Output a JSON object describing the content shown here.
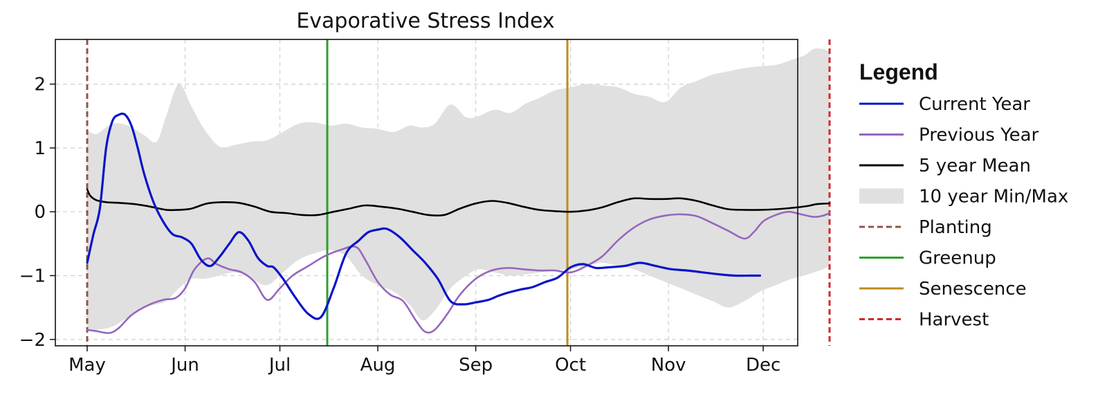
{
  "chart_data": {
    "type": "line",
    "title": "Evaporative Stress Index",
    "xlabel": "",
    "ylabel": "",
    "x_domain": [
      "2023-05-01",
      "2023-12-22"
    ],
    "xlim": [
      0,
      235
    ],
    "ylim": [
      -2.1,
      2.7
    ],
    "x_ticks": [
      {
        "label": "May",
        "x": 0
      },
      {
        "label": "Jun",
        "x": 31
      },
      {
        "label": "Jul",
        "x": 61
      },
      {
        "label": "Aug",
        "x": 92
      },
      {
        "label": "Sep",
        "x": 123
      },
      {
        "label": "Oct",
        "x": 153
      },
      {
        "label": "Nov",
        "x": 184
      },
      {
        "label": "Dec",
        "x": 214
      }
    ],
    "y_ticks": [
      {
        "label": "2",
        "y": 2
      },
      {
        "label": "1",
        "y": 1
      },
      {
        "label": "0",
        "y": 0
      },
      {
        "label": "−1",
        "y": -1
      },
      {
        "label": "−2",
        "y": -2
      }
    ],
    "grid": true,
    "legend_position": "right",
    "legend_title": "Legend",
    "band": {
      "name": "10 year Min/Max",
      "color": "#e0e0e0",
      "x": [
        0,
        3,
        8,
        13,
        18,
        22,
        25,
        29,
        33,
        37,
        42,
        47,
        52,
        57,
        62,
        67,
        72,
        77,
        82,
        87,
        92,
        97,
        102,
        106,
        110,
        115,
        120,
        124,
        129,
        134,
        139,
        143,
        148,
        153,
        158,
        163,
        168,
        173,
        178,
        183,
        188,
        193,
        198,
        203,
        208,
        213,
        218,
        223,
        227,
        230,
        233,
        235
      ],
      "upper": [
        1.28,
        1.22,
        1.38,
        1.35,
        1.2,
        1.1,
        1.5,
        2.0,
        1.65,
        1.3,
        1.02,
        1.05,
        1.1,
        1.12,
        1.25,
        1.38,
        1.4,
        1.35,
        1.38,
        1.32,
        1.3,
        1.25,
        1.35,
        1.32,
        1.38,
        1.68,
        1.48,
        1.5,
        1.6,
        1.55,
        1.7,
        1.78,
        1.9,
        1.95,
        2.0,
        1.98,
        1.95,
        1.85,
        1.8,
        1.72,
        1.95,
        2.05,
        2.15,
        2.2,
        2.25,
        2.28,
        2.3,
        2.38,
        2.45,
        2.55,
        2.55,
        2.5
      ],
      "lower": [
        -1.85,
        -1.85,
        -1.8,
        -1.65,
        -1.5,
        -1.45,
        -1.4,
        -1.2,
        -1.05,
        -1.05,
        -1.0,
        -0.95,
        -1.05,
        -1.15,
        -0.95,
        -0.75,
        -0.65,
        -0.6,
        -0.7,
        -1.0,
        -1.15,
        -1.25,
        -1.45,
        -1.7,
        -1.55,
        -1.2,
        -1.0,
        -0.9,
        -0.95,
        -1.0,
        -0.98,
        -0.95,
        -0.92,
        -0.9,
        -0.85,
        -0.8,
        -0.85,
        -0.9,
        -1.0,
        -1.1,
        -1.2,
        -1.3,
        -1.4,
        -1.5,
        -1.4,
        -1.25,
        -1.15,
        -1.05,
        -1.0,
        -0.95,
        -0.9,
        -0.85
      ]
    },
    "series": [
      {
        "name": "5 year Mean",
        "color": "#000000",
        "width": 2.6,
        "dash": "",
        "x": [
          0,
          1,
          3,
          6,
          10,
          15,
          20,
          25,
          29,
          33,
          38,
          43,
          48,
          53,
          58,
          63,
          68,
          73,
          78,
          83,
          88,
          93,
          98,
          103,
          108,
          113,
          118,
          123,
          128,
          133,
          138,
          143,
          148,
          153,
          158,
          163,
          168,
          173,
          178,
          183,
          188,
          193,
          198,
          203,
          208,
          213,
          218,
          223,
          228,
          231,
          235
        ],
        "y": [
          0.35,
          0.25,
          0.18,
          0.15,
          0.14,
          0.12,
          0.08,
          0.03,
          0.03,
          0.05,
          0.13,
          0.15,
          0.14,
          0.08,
          0.0,
          -0.02,
          -0.05,
          -0.05,
          0.0,
          0.05,
          0.1,
          0.08,
          0.05,
          0.0,
          -0.05,
          -0.05,
          0.05,
          0.13,
          0.17,
          0.14,
          0.08,
          0.03,
          0.01,
          0.0,
          0.02,
          0.07,
          0.15,
          0.21,
          0.2,
          0.2,
          0.21,
          0.17,
          0.1,
          0.04,
          0.03,
          0.03,
          0.04,
          0.06,
          0.09,
          0.12,
          0.13
        ]
      },
      {
        "name": "Previous Year",
        "color": "#9467bd",
        "width": 2.6,
        "dash": "",
        "x": [
          0,
          3,
          7,
          10,
          14,
          19,
          24,
          28,
          31,
          34,
          38,
          41,
          45,
          49,
          53,
          57,
          61,
          65,
          70,
          75,
          80,
          85,
          88,
          92,
          96,
          100,
          104,
          107,
          110,
          114,
          118,
          123,
          128,
          133,
          138,
          143,
          148,
          153,
          158,
          163,
          168,
          173,
          178,
          183,
          188,
          193,
          198,
          203,
          208,
          211,
          214,
          218,
          222,
          226,
          230,
          233,
          235
        ],
        "y": [
          -1.85,
          -1.87,
          -1.9,
          -1.82,
          -1.62,
          -1.47,
          -1.38,
          -1.35,
          -1.2,
          -0.9,
          -0.73,
          -0.82,
          -0.9,
          -0.95,
          -1.1,
          -1.38,
          -1.2,
          -1.0,
          -0.85,
          -0.7,
          -0.6,
          -0.55,
          -0.75,
          -1.1,
          -1.3,
          -1.4,
          -1.7,
          -1.88,
          -1.85,
          -1.6,
          -1.3,
          -1.05,
          -0.92,
          -0.88,
          -0.9,
          -0.92,
          -0.92,
          -0.95,
          -0.85,
          -0.7,
          -0.45,
          -0.25,
          -0.12,
          -0.06,
          -0.04,
          -0.07,
          -0.18,
          -0.3,
          -0.42,
          -0.32,
          -0.15,
          -0.05,
          0.0,
          -0.04,
          -0.08,
          -0.06,
          -0.02
        ]
      },
      {
        "name": "Current Year",
        "color": "#0a14c8",
        "width": 3.2,
        "dash": "",
        "x": [
          0,
          2,
          4,
          6,
          8,
          10,
          12,
          14,
          16,
          18,
          21,
          24,
          27,
          30,
          33,
          36,
          39,
          42,
          45,
          48,
          51,
          54,
          57,
          59,
          62,
          66,
          70,
          74,
          78,
          82,
          86,
          89,
          92,
          95,
          99,
          103,
          107,
          111,
          115,
          119,
          123,
          127,
          130,
          133,
          137,
          141,
          145,
          149,
          153,
          157,
          161,
          165,
          170,
          175,
          180,
          185,
          190,
          195,
          200,
          205,
          210,
          213
        ],
        "y": [
          -0.8,
          -0.35,
          0.05,
          1.0,
          1.42,
          1.52,
          1.52,
          1.35,
          1.0,
          0.6,
          0.15,
          -0.15,
          -0.35,
          -0.4,
          -0.5,
          -0.75,
          -0.85,
          -0.7,
          -0.5,
          -0.32,
          -0.45,
          -0.72,
          -0.85,
          -0.87,
          -1.05,
          -1.35,
          -1.6,
          -1.65,
          -1.2,
          -0.65,
          -0.45,
          -0.32,
          -0.28,
          -0.27,
          -0.4,
          -0.6,
          -0.8,
          -1.05,
          -1.4,
          -1.45,
          -1.42,
          -1.38,
          -1.32,
          -1.27,
          -1.22,
          -1.18,
          -1.1,
          -1.03,
          -0.87,
          -0.82,
          -0.88,
          -0.87,
          -0.85,
          -0.8,
          -0.85,
          -0.9,
          -0.92,
          -0.95,
          -0.98,
          -1.0,
          -1.0,
          -1.0
        ]
      }
    ],
    "vlines": [
      {
        "name": "Planting",
        "x": 0,
        "color": "#8c564b",
        "dash": "8 5",
        "width": 3
      },
      {
        "name": "Greenup",
        "x": 76,
        "color": "#2ca02c",
        "dash": "",
        "width": 3
      },
      {
        "name": "Senescence",
        "x": 152,
        "color": "#bf8c1a",
        "dash": "",
        "width": 3
      },
      {
        "name": "Harvest",
        "x": 235,
        "color": "#d62728",
        "dash": "8 5",
        "width": 3
      }
    ],
    "legend_entries": [
      {
        "label": "Current Year",
        "kind": "line",
        "color": "#0a14c8",
        "dash": ""
      },
      {
        "label": "Previous Year",
        "kind": "line",
        "color": "#9467bd",
        "dash": ""
      },
      {
        "label": "5 year Mean",
        "kind": "line",
        "color": "#000000",
        "dash": ""
      },
      {
        "label": "10 year Min/Max",
        "kind": "patch",
        "color": "#e0e0e0",
        "dash": ""
      },
      {
        "label": "Planting",
        "kind": "line",
        "color": "#8c564b",
        "dash": "8 5"
      },
      {
        "label": "Greenup",
        "kind": "line",
        "color": "#2ca02c",
        "dash": ""
      },
      {
        "label": "Senescence",
        "kind": "line",
        "color": "#bf8c1a",
        "dash": ""
      },
      {
        "label": "Harvest",
        "kind": "line",
        "color": "#d62728",
        "dash": "8 5"
      }
    ]
  }
}
